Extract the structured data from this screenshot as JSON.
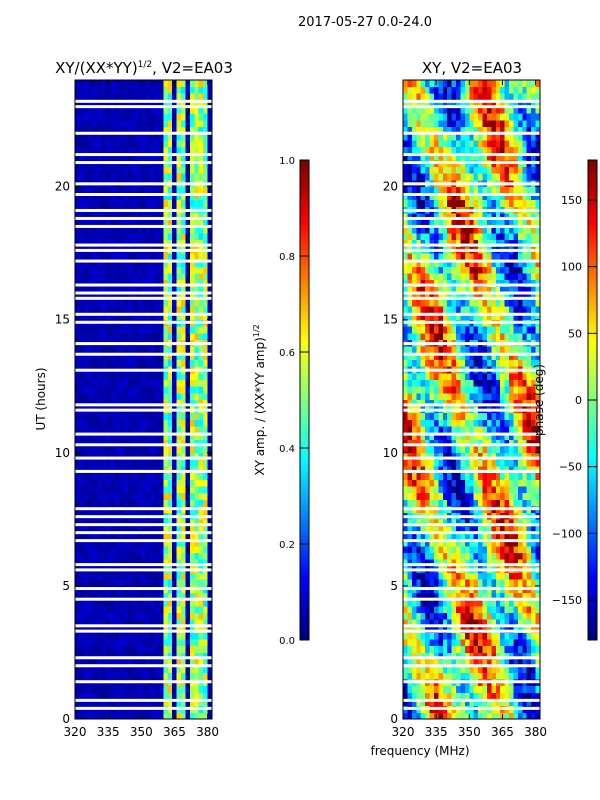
{
  "suptitle": "2017-05-27 0.0-24.0",
  "chart_data": [
    {
      "type": "heatmap",
      "title": "XY/(XX*YY)^{1/2}, V2=EA03",
      "title_main": "XY/(XX*YY)",
      "title_exp": "1/2",
      "title_tail": ", V2=EA03",
      "xlabel": "",
      "ylabel": "UT (hours)",
      "x_ticks": [
        320,
        335,
        350,
        365,
        380
      ],
      "x_tick_labels": [
        "320",
        "335",
        "350",
        "365",
        "380"
      ],
      "y_ticks": [
        0,
        5,
        10,
        15,
        20
      ],
      "y_tick_labels": [
        "0",
        "5",
        "10",
        "15",
        "20"
      ],
      "xlim": [
        320,
        382
      ],
      "ylim": [
        0,
        24
      ],
      "colorbar": {
        "label": "XY amp. / (XX*YY amp)^{1/2}",
        "label_main": "XY amp. / (XX*YY amp)",
        "label_exp": "1/2",
        "range": [
          0.0,
          1.0
        ],
        "ticks": [
          0.0,
          0.2,
          0.4,
          0.6,
          0.8,
          1.0
        ],
        "tick_labels": [
          "0.0",
          "0.2",
          "0.4",
          "0.6",
          "0.8",
          "1.0"
        ],
        "colormap": "jet"
      },
      "bright_bands_mhz": [
        [
          360,
          364
        ],
        [
          366,
          370
        ],
        [
          372,
          375
        ],
        [
          377,
          380
        ]
      ],
      "flagged_hours": [
        0.4,
        0.7,
        1.4,
        2.0,
        2.3,
        3.3,
        3.5,
        4.5,
        4.9,
        5.6,
        5.8,
        6.7,
        7.0,
        7.3,
        7.6,
        7.9,
        9.3,
        9.8,
        10.3,
        10.7,
        11.6,
        11.8,
        13.1,
        13.7,
        14.1,
        14.9,
        15.2,
        15.8,
        16.0,
        16.3,
        17.2,
        17.6,
        17.8,
        18.5,
        18.8,
        19.1,
        19.7,
        20.1,
        20.9,
        21.2,
        22.0,
        23.0,
        23.2
      ]
    },
    {
      "type": "heatmap",
      "title": "XY, V2=EA03",
      "xlabel": "frequency (MHz)",
      "ylabel": "",
      "x_ticks": [
        320,
        335,
        350,
        365,
        380
      ],
      "x_tick_labels": [
        "320",
        "335",
        "350",
        "365",
        "380"
      ],
      "y_ticks": [
        0,
        5,
        10,
        15,
        20
      ],
      "y_tick_labels": [
        "0",
        "5",
        "10",
        "15",
        "20"
      ],
      "xlim": [
        320,
        382
      ],
      "ylim": [
        0,
        24
      ],
      "colorbar": {
        "label": "phase (deg)",
        "range": [
          -180,
          180
        ],
        "ticks": [
          -150,
          -100,
          -50,
          0,
          50,
          100,
          150
        ],
        "tick_labels": [
          "−150",
          "−100",
          "−50",
          "0",
          "50",
          "100",
          "150"
        ],
        "colormap": "jet"
      },
      "flagged_hours": [
        0.4,
        0.7,
        1.4,
        2.0,
        2.3,
        3.3,
        3.5,
        4.5,
        4.9,
        5.6,
        5.8,
        6.7,
        7.0,
        7.3,
        7.6,
        7.9,
        9.3,
        9.8,
        10.3,
        10.7,
        11.6,
        11.8,
        13.1,
        13.7,
        14.1,
        14.9,
        15.2,
        15.8,
        16.0,
        16.3,
        17.2,
        17.6,
        17.8,
        18.5,
        18.8,
        19.1,
        19.7,
        20.1,
        20.9,
        21.2,
        22.0,
        23.0,
        23.2
      ]
    }
  ]
}
